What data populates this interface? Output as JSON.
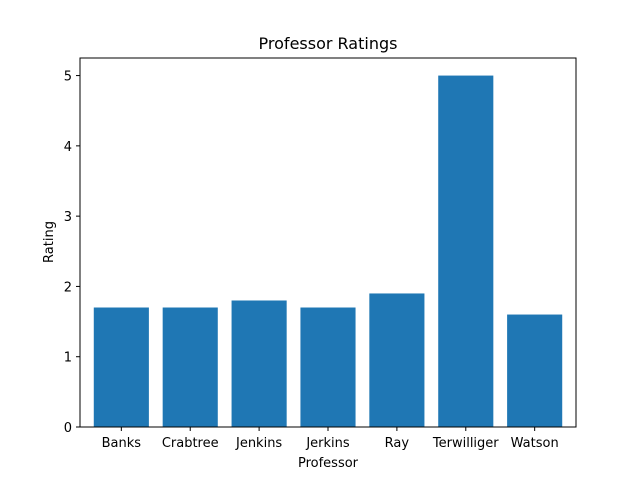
{
  "chart_data": {
    "type": "bar",
    "title": "Professor Ratings",
    "xlabel": "Professor",
    "ylabel": "Rating",
    "categories": [
      "Banks",
      "Crabtree",
      "Jenkins",
      "Jerkins",
      "Ray",
      "Terwilliger",
      "Watson"
    ],
    "values": [
      1.7,
      1.7,
      1.8,
      1.7,
      1.9,
      5.0,
      1.6
    ],
    "ylim": [
      0,
      5.25
    ],
    "yticks": [
      "0",
      "1",
      "2",
      "3",
      "4",
      "5"
    ],
    "grid": false,
    "legend": "none",
    "bar_color": "#1f77b4"
  }
}
